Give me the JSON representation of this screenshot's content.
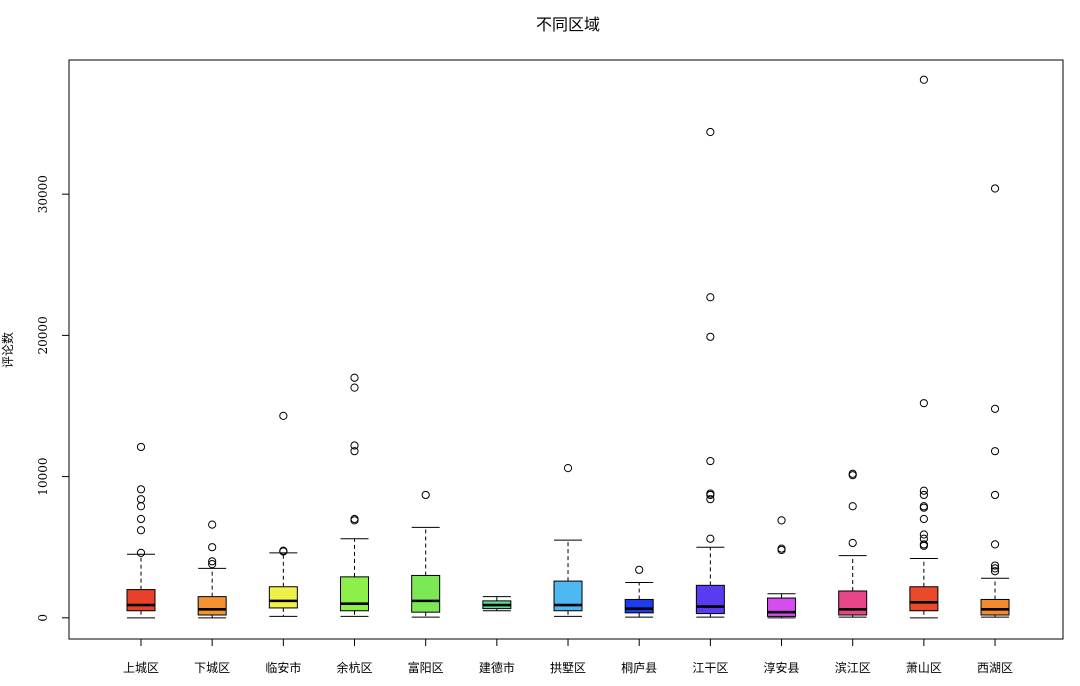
{
  "chart_data": {
    "type": "boxplot",
    "title": "不同区域",
    "xlabel": "",
    "ylabel": "评论数",
    "ylim": [
      -1500,
      39500
    ],
    "y_ticks": [
      0,
      10000,
      20000,
      30000
    ],
    "y_tick_labels": [
      "0",
      "10000",
      "20000",
      "30000"
    ],
    "grid": false,
    "categories": [
      "上城区",
      "下城区",
      "临安市",
      "余杭区",
      "富阳区",
      "建德市",
      "拱墅区",
      "桐庐县",
      "江干区",
      "淳安县",
      "滨江区",
      "萧山区",
      "西湖区"
    ],
    "colors": [
      "#e8402a",
      "#f39233",
      "#f0f04a",
      "#8cef4a",
      "#7ce856",
      "#5ae08e",
      "#4fb8f0",
      "#1d3cf0",
      "#5a3cf0",
      "#d64cf0",
      "#e84488",
      "#ea4a2a",
      "#f38a30"
    ],
    "boxes": [
      {
        "min": 0,
        "q1": 500,
        "median": 900,
        "q3": 2000,
        "max": 4500,
        "outliers": [
          4600,
          6200,
          7000,
          7900,
          8400,
          9100,
          12100
        ]
      },
      {
        "min": 0,
        "q1": 200,
        "median": 600,
        "q3": 1500,
        "max": 3500,
        "outliers": [
          3800,
          4000,
          5000,
          6600
        ]
      },
      {
        "min": 100,
        "q1": 700,
        "median": 1200,
        "q3": 2200,
        "max": 4600,
        "outliers": [
          4700,
          4750,
          14300
        ]
      },
      {
        "min": 100,
        "q1": 500,
        "median": 1000,
        "q3": 2900,
        "max": 5600,
        "outliers": [
          6900,
          7000,
          11800,
          12200,
          16300,
          17000
        ]
      },
      {
        "min": 50,
        "q1": 400,
        "median": 1200,
        "q3": 3000,
        "max": 6400,
        "outliers": [
          8700
        ]
      },
      {
        "min": 500,
        "q1": 650,
        "median": 900,
        "q3": 1200,
        "max": 1500,
        "outliers": []
      },
      {
        "min": 100,
        "q1": 500,
        "median": 900,
        "q3": 2600,
        "max": 5500,
        "outliers": [
          10600
        ]
      },
      {
        "min": 50,
        "q1": 350,
        "median": 650,
        "q3": 1300,
        "max": 2500,
        "outliers": [
          3400
        ]
      },
      {
        "min": 50,
        "q1": 300,
        "median": 800,
        "q3": 2300,
        "max": 5000,
        "outliers": [
          5600,
          8400,
          8700,
          8800,
          11100,
          19900,
          22700,
          34400
        ]
      },
      {
        "min": 0,
        "q1": 100,
        "median": 400,
        "q3": 1400,
        "max": 1700,
        "outliers": [
          4800,
          4900,
          6900
        ]
      },
      {
        "min": 50,
        "q1": 200,
        "median": 600,
        "q3": 1900,
        "max": 4400,
        "outliers": [
          5300,
          7900,
          10100,
          10200
        ]
      },
      {
        "min": 0,
        "q1": 500,
        "median": 1100,
        "q3": 2200,
        "max": 4200,
        "outliers": [
          5100,
          5200,
          5600,
          5900,
          7000,
          7800,
          7900,
          8700,
          9000,
          15200,
          38100
        ]
      },
      {
        "min": 50,
        "q1": 200,
        "median": 600,
        "q3": 1300,
        "max": 2800,
        "outliers": [
          3300,
          3500,
          3700,
          5200,
          8700,
          11800,
          14800,
          30400
        ]
      }
    ]
  }
}
